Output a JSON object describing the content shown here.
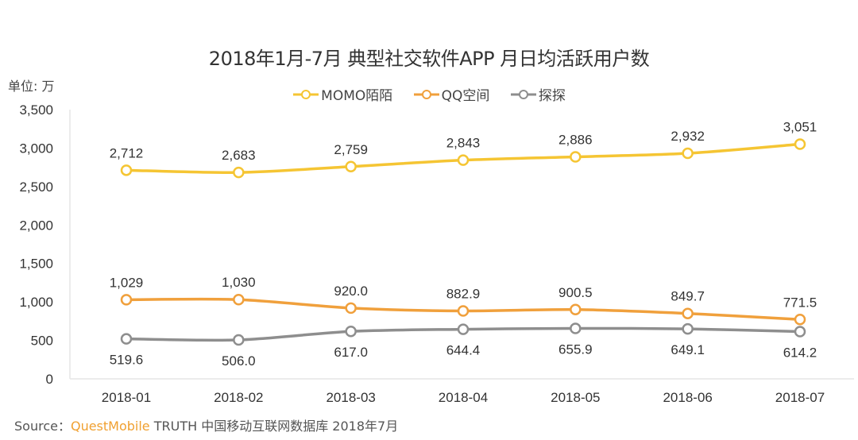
{
  "chart_data": {
    "type": "line",
    "title": "2018年1月-7月 典型社交软件APP 月日均活跃用户数",
    "unit_label": "单位: 万",
    "xlabel": "",
    "ylabel": "",
    "categories": [
      "2018-01",
      "2018-02",
      "2018-03",
      "2018-04",
      "2018-05",
      "2018-06",
      "2018-07"
    ],
    "ylim": [
      0,
      3500
    ],
    "yticks": [
      0,
      500,
      1000,
      1500,
      2000,
      2500,
      3000,
      3500
    ],
    "ytick_labels": [
      "0",
      "500",
      "1,000",
      "1,500",
      "2,000",
      "2,500",
      "3,000",
      "3,500"
    ],
    "grid": false,
    "legend_position": "top-center",
    "series": [
      {
        "name": "MOMO陌陌",
        "color": "#f5c533",
        "label_pos": "above",
        "values": [
          2712,
          2683,
          2759,
          2843,
          2886,
          2932,
          3051
        ],
        "labels": [
          "2,712",
          "2,683",
          "2,759",
          "2,843",
          "2,886",
          "2,932",
          "3,051"
        ]
      },
      {
        "name": "QQ空间",
        "color": "#f0a03c",
        "label_pos": "above",
        "values": [
          1029,
          1030,
          920.0,
          882.9,
          900.5,
          849.7,
          771.5
        ],
        "labels": [
          "1,029",
          "1,030",
          "920.0",
          "882.9",
          "900.5",
          "849.7",
          "771.5"
        ]
      },
      {
        "name": "探探",
        "color": "#8e8e8e",
        "label_pos": "below",
        "values": [
          519.6,
          506.0,
          617.0,
          644.4,
          655.9,
          649.1,
          614.2
        ],
        "labels": [
          "519.6",
          "506.0",
          "617.0",
          "644.4",
          "655.9",
          "649.1",
          "614.2"
        ]
      }
    ]
  },
  "source": {
    "prefix": "Source：",
    "brand": "QuestMobile",
    "suffix": " TRUTH 中国移动互联网数据库 2018年7月"
  }
}
